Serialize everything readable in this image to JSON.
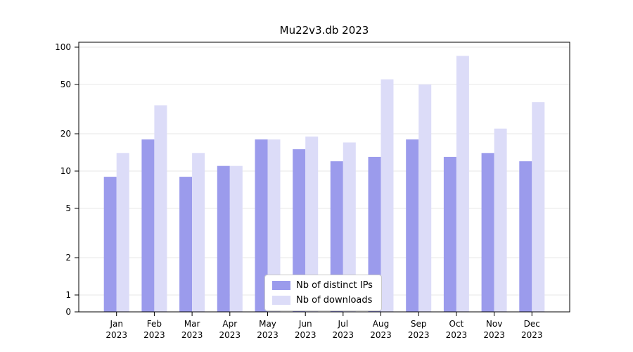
{
  "chart_data": {
    "type": "bar",
    "title": "Mu22v3.db 2023",
    "scale": "symlog",
    "grid": true,
    "legend_position": "bottom-center",
    "categories": [
      "Jan",
      "Feb",
      "Mar",
      "Apr",
      "May",
      "Jun",
      "Jul",
      "Aug",
      "Sep",
      "Oct",
      "Nov",
      "Dec"
    ],
    "category_year": "2023",
    "series": [
      {
        "name": "Nb of distinct IPs",
        "color": "#9b9bec",
        "values": [
          9,
          18,
          9,
          11,
          18,
          15,
          12,
          13,
          18,
          13,
          14,
          12
        ]
      },
      {
        "name": "Nb of downloads",
        "color": "#dcdcf8",
        "values": [
          14,
          34,
          14,
          11,
          18,
          19,
          17,
          55,
          50,
          85,
          22,
          36
        ]
      }
    ],
    "yticks": [
      0,
      1,
      2,
      5,
      10,
      20,
      50,
      100
    ],
    "ylim": [
      0,
      100
    ],
    "colors": {
      "grid": "#e7e7e7",
      "axis": "#000000",
      "background": "#ffffff"
    }
  }
}
